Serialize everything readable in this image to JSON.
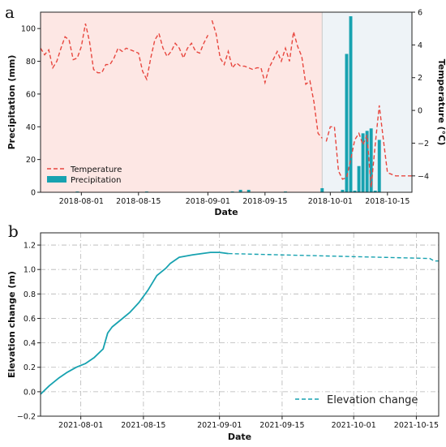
{
  "panel_labels": {
    "a": "a",
    "b": "b"
  },
  "chart_data": [
    {
      "type": "bar+line",
      "xlabel": "Date",
      "ylabel_left": "Precipitation (mm)",
      "ylabel_right": "Temperature (°C)",
      "xlim": [
        "2018-07-22",
        "2018-10-21"
      ],
      "ylim_left": [
        0,
        110
      ],
      "ylim_right": [
        -5,
        6
      ],
      "xticks": [
        "2018-08-01",
        "2018-08-15",
        "2018-09-01",
        "2018-09-15",
        "2018-10-01",
        "2018-10-15"
      ],
      "yticks_left": [
        "0",
        "20",
        "40",
        "60",
        "80",
        "100"
      ],
      "yticks_right": [
        "−4",
        "−2",
        "0",
        "2",
        "4",
        "6"
      ],
      "shading": [
        {
          "from": "2018-07-22",
          "to": "2018-09-29",
          "color": "#fde7e4"
        },
        {
          "from": "2018-09-29",
          "to": "2018-10-21",
          "color": "#eef3f7"
        }
      ],
      "legend": {
        "placement": "lower-left",
        "entries": [
          "Temperature",
          "Precipitation"
        ]
      },
      "colors": {
        "temperature": "#e8473f",
        "precipitation": "#17a2b0"
      },
      "series": [
        {
          "name": "Temperature",
          "kind": "line",
          "axis": "right",
          "x": [
            "2018-07-22",
            "2018-07-23",
            "2018-07-24",
            "2018-07-25",
            "2018-07-26",
            "2018-07-27",
            "2018-07-28",
            "2018-07-29",
            "2018-07-30",
            "2018-07-31",
            "2018-08-01",
            "2018-08-02",
            "2018-08-03",
            "2018-08-04",
            "2018-08-05",
            "2018-08-06",
            "2018-08-07",
            "2018-08-08",
            "2018-08-09",
            "2018-08-10",
            "2018-08-11",
            "2018-08-12",
            "2018-08-13",
            "2018-08-14",
            "2018-08-15",
            "2018-08-16",
            "2018-08-17",
            "2018-08-18",
            "2018-08-19",
            "2018-08-20",
            "2018-08-21",
            "2018-08-22",
            "2018-08-23",
            "2018-08-24",
            "2018-08-25",
            "2018-08-26",
            "2018-08-27",
            "2018-08-28",
            "2018-08-29",
            "2018-08-30",
            "2018-08-31",
            "2018-09-01",
            "2018-09-02",
            "2018-09-03",
            "2018-09-04",
            "2018-09-05",
            "2018-09-06",
            "2018-09-07",
            "2018-09-08",
            "2018-09-09",
            "2018-09-10",
            "2018-09-11",
            "2018-09-12",
            "2018-09-13",
            "2018-09-14",
            "2018-09-15",
            "2018-09-16",
            "2018-09-17",
            "2018-09-18",
            "2018-09-19",
            "2018-09-20",
            "2018-09-21",
            "2018-09-22",
            "2018-09-23",
            "2018-09-24",
            "2018-09-25",
            "2018-09-26",
            "2018-09-27",
            "2018-09-28",
            "2018-09-29",
            "2018-09-30",
            "2018-10-01",
            "2018-10-02",
            "2018-10-03",
            "2018-10-04",
            "2018-10-05",
            "2018-10-06",
            "2018-10-07",
            "2018-10-08",
            "2018-10-09",
            "2018-10-10",
            "2018-10-11",
            "2018-10-12",
            "2018-10-13",
            "2018-10-14",
            "2018-10-15",
            "2018-10-16",
            "2018-10-17",
            "2018-10-18",
            "2018-10-19",
            "2018-10-20",
            "2018-10-21"
          ],
          "values": [
            3.8,
            3.4,
            3.7,
            2.6,
            3.0,
            3.8,
            4.5,
            4.3,
            3.1,
            3.2,
            3.9,
            5.3,
            4.2,
            2.5,
            2.3,
            2.3,
            2.8,
            2.8,
            3.2,
            3.8,
            3.6,
            3.8,
            3.7,
            3.6,
            3.5,
            2.4,
            1.9,
            3.2,
            4.3,
            4.7,
            3.8,
            3.3,
            3.6,
            4.1,
            3.8,
            3.2,
            3.8,
            4.1,
            3.6,
            3.5,
            4.1,
            4.6,
            5.5,
            4.7,
            3.2,
            2.8,
            3.6,
            2.6,
            2.9,
            2.7,
            2.7,
            2.6,
            2.5,
            2.6,
            2.6,
            1.7,
            2.6,
            3.1,
            3.6,
            3.0,
            3.8,
            3.0,
            4.8,
            3.9,
            3.3,
            1.6,
            1.8,
            0.5,
            -1.4,
            -1.7,
            -1.9,
            -1.0,
            -1.0,
            -3.7,
            -4.2,
            -4.1,
            -3.0,
            -1.8,
            -1.4,
            -2.1,
            -1.5,
            -4.7,
            -2.1,
            0.3,
            -1.8,
            -3.8,
            -3.9,
            -4.0,
            -4.0,
            -4.0,
            -4.0,
            -4.0
          ],
          "gaps_after": [
            "2018-09-01",
            "2018-09-29"
          ]
        },
        {
          "name": "Precipitation",
          "kind": "bar",
          "axis": "left",
          "x": [
            "2018-07-31",
            "2018-08-17",
            "2018-09-07",
            "2018-09-09",
            "2018-09-11",
            "2018-09-20",
            "2018-09-29",
            "2018-10-04",
            "2018-10-05",
            "2018-10-06",
            "2018-10-07",
            "2018-10-08",
            "2018-10-09",
            "2018-10-10",
            "2018-10-11",
            "2018-10-12",
            "2018-10-13"
          ],
          "values": [
            0.5,
            0.5,
            0.5,
            1.5,
            1.5,
            0.5,
            2.5,
            1.5,
            84.5,
            107.5,
            1,
            16,
            36,
            37.5,
            39,
            1,
            32
          ]
        }
      ]
    },
    {
      "type": "line",
      "xlabel": "Date",
      "ylabel": "Elevation change (m)",
      "xlim": [
        "2021-07-23",
        "2021-10-20"
      ],
      "ylim": [
        -0.2,
        1.3
      ],
      "xticks": [
        "2021-08-01",
        "2021-08-15",
        "2021-09-01",
        "2021-09-15",
        "2021-10-01",
        "2021-10-15"
      ],
      "yticks": [
        "−0.2",
        "0.0",
        "0.2",
        "0.4",
        "0.6",
        "0.8",
        "1.0",
        "1.2"
      ],
      "grid": true,
      "legend": {
        "placement": "lower-right",
        "entries": [
          "Elevation change"
        ]
      },
      "colors": {
        "line": "#17a2b0"
      },
      "series": [
        {
          "name": "Elevation change",
          "x": [
            "2021-07-23",
            "2021-07-25",
            "2021-07-27",
            "2021-07-29",
            "2021-07-31",
            "2021-08-02",
            "2021-08-04",
            "2021-08-06",
            "2021-08-07",
            "2021-08-08",
            "2021-08-10",
            "2021-08-12",
            "2021-08-14",
            "2021-08-16",
            "2021-08-18",
            "2021-08-20",
            "2021-08-21",
            "2021-08-23",
            "2021-08-26",
            "2021-08-28",
            "2021-08-30",
            "2021-09-01",
            "2021-09-03",
            "2021-10-18",
            "2021-10-19",
            "2021-10-20"
          ],
          "values": [
            -0.02,
            0.05,
            0.11,
            0.16,
            0.2,
            0.23,
            0.28,
            0.35,
            0.48,
            0.53,
            0.59,
            0.65,
            0.73,
            0.83,
            0.95,
            1.01,
            1.05,
            1.1,
            1.12,
            1.13,
            1.14,
            1.14,
            1.13,
            1.09,
            1.07,
            1.07
          ],
          "solid_until": "2021-09-03",
          "dashed_from": "2021-09-03"
        }
      ]
    }
  ]
}
